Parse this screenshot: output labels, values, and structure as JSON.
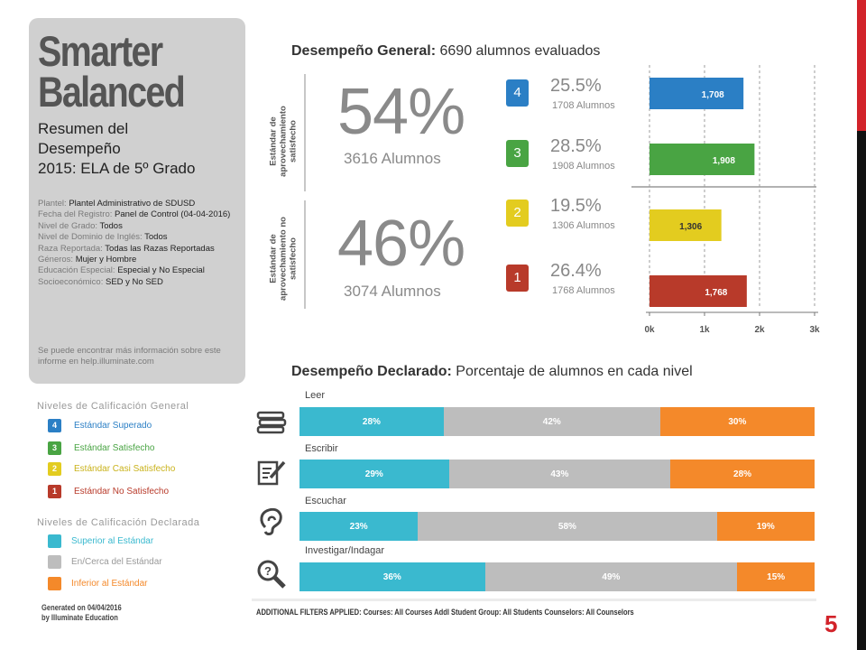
{
  "page_number": "5",
  "summary": {
    "logo_line1": "Smarter",
    "logo_line2": "Balanced",
    "title_line1": "Resumen del",
    "title_line2": "Desempeño",
    "title_line3": "2015: ELA de 5º Grado",
    "info": [
      {
        "label": "Plantel: ",
        "value": "Plantel Administrativo de SDUSD"
      },
      {
        "label": "Fecha del Registro: ",
        "value": "Panel de Control (04-04-2016)"
      },
      {
        "label": "Nivel de Grado: ",
        "value": "Todos"
      },
      {
        "label": "Nivel de Dominio de Inglés: ",
        "value": "Todos"
      },
      {
        "label": "Raza Reportada: ",
        "value": "Todas las Razas Reportadas"
      },
      {
        "label": "Géneros: ",
        "value": "Mujer y Hombre"
      },
      {
        "label": "Educación Especial: ",
        "value": "Especial y No Especial"
      },
      {
        "label": "Socioeconómico: ",
        "value": "SED y No SED"
      }
    ],
    "footer": "Se puede encontrar más información sobre este informe en help.illuminate.com"
  },
  "legend_general": {
    "heading": "Niveles de Calificación General",
    "items": [
      {
        "badge": "4",
        "label": "Estándar Superado",
        "color": "#2b7fc5"
      },
      {
        "badge": "3",
        "label": "Estándar Satisfecho",
        "color": "#49a443"
      },
      {
        "badge": "2",
        "label": "Estándar Casi Satisfecho",
        "color": "#e3cc1f"
      },
      {
        "badge": "1",
        "label": "Estándar No Satisfecho",
        "color": "#b83a2a"
      }
    ]
  },
  "legend_declared": {
    "heading": "Niveles de Calificación Declarada",
    "items": [
      {
        "label": "Superior al Estándar",
        "color": "#3ab9cf"
      },
      {
        "label": "En/Cerca del Estándar",
        "color": "#bdbdbd"
      },
      {
        "label": "Inferior al Estándar",
        "color": "#f4892a"
      }
    ]
  },
  "generated_note_line1": "Generated on 04/04/2016",
  "generated_note_line2": "by Illuminate Education",
  "general_section": {
    "title_bold": "Desempeño General:",
    "title_rest": " 6690 alumnos evaluados",
    "label_met": "Estándar de aprovechamiento satisfecho",
    "label_not_met": "Estándar de aprovechamiento no satisfecho",
    "met_pct": "54%",
    "met_count": "3616 Alumnos",
    "not_met_pct": "46%",
    "not_met_count": "3074 Alumnos"
  },
  "declared_section": {
    "title_bold": "Desempeño Declarado:",
    "title_rest": " Porcentaje de alumnos en cada nivel"
  },
  "filters_text": "ADDITIONAL FILTERS APPLIED:  Courses: All Courses   Addl Student Group: All Students   Counselors: All Counselors",
  "chart_data": [
    {
      "type": "bar",
      "orientation": "horizontal",
      "categories": [
        "4",
        "3",
        "2",
        "1"
      ],
      "values": [
        1708,
        1908,
        1306,
        1768
      ],
      "value_labels": [
        "1,708",
        "1,908",
        "1,306",
        "1,768"
      ],
      "percent_labels": [
        "25.5%",
        "28.5%",
        "19.5%",
        "26.4%"
      ],
      "count_labels": [
        "1708 Alumnos",
        "1908 Alumnos",
        "1306 Alumnos",
        "1768 Alumnos"
      ],
      "colors": [
        "#2b7fc5",
        "#49a443",
        "#e3cc1f",
        "#b83a2a"
      ],
      "xlim": [
        0,
        3000
      ],
      "xticks": [
        "0k",
        "1k",
        "2k",
        "3k"
      ],
      "grid": true
    },
    {
      "type": "bar",
      "orientation": "horizontal",
      "stacked": true,
      "categories": [
        "Leer",
        "Escribir",
        "Escuchar",
        "Investigar/Indagar"
      ],
      "series": [
        {
          "name": "Superior al Estándar",
          "values": [
            28,
            29,
            23,
            36
          ],
          "color": "#3ab9cf"
        },
        {
          "name": "En/Cerca del Estándar",
          "values": [
            42,
            43,
            58,
            49
          ],
          "color": "#bdbdbd"
        },
        {
          "name": "Inferior al Estándar",
          "values": [
            30,
            28,
            19,
            15
          ],
          "color": "#f4892a"
        }
      ],
      "unit": "%"
    }
  ]
}
